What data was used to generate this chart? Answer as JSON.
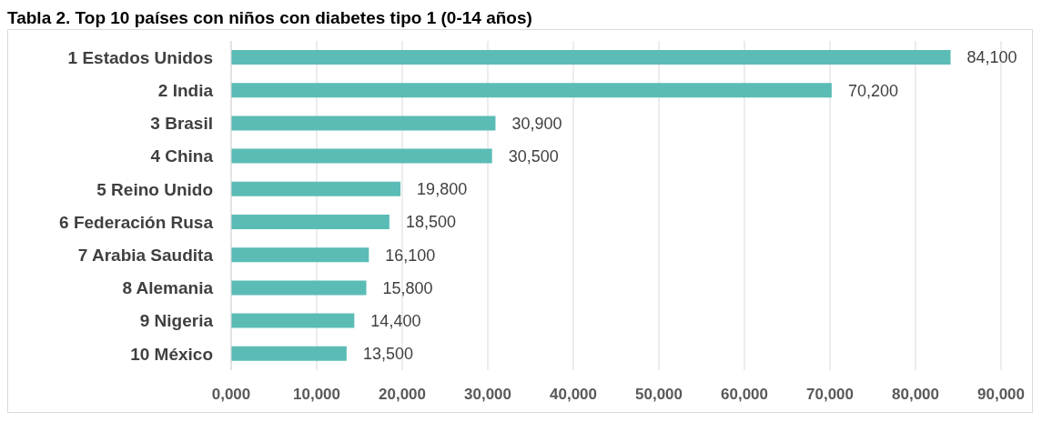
{
  "chart_data": {
    "type": "bar",
    "orientation": "horizontal",
    "title": "Tabla 2. Top 10 países con niños con diabetes tipo 1 (0-14 años)",
    "categories": [
      "1 Estados Unidos",
      "2 India",
      "3 Brasil",
      "4 China",
      "5 Reino Unido",
      "6 Federación Rusa",
      "7 Arabia Saudita",
      "8 Alemania",
      "9 Nigeria",
      "10 México"
    ],
    "values": [
      84100,
      70200,
      30900,
      30500,
      19800,
      18500,
      16100,
      15800,
      14400,
      13500
    ],
    "value_labels": [
      "84,100",
      "70,200",
      "30,900",
      "30,500",
      "19,800",
      "18,500",
      "16,100",
      "15,800",
      "14,400",
      "13,500"
    ],
    "color": "#5bbcb6",
    "xlim": [
      0,
      90000
    ],
    "xticks": [
      {
        "value": 0,
        "label": "0,000"
      },
      {
        "value": 10000,
        "label": "10,000"
      },
      {
        "value": 20000,
        "label": "20,000"
      },
      {
        "value": 30000,
        "label": "30,000"
      },
      {
        "value": 40000,
        "label": "40,000"
      },
      {
        "value": 50000,
        "label": "50,000"
      },
      {
        "value": 60000,
        "label": "60,000"
      },
      {
        "value": 70000,
        "label": "70,000"
      },
      {
        "value": 80000,
        "label": "80,000"
      },
      {
        "value": 90000,
        "label": "90,000"
      }
    ],
    "grid": "x"
  }
}
